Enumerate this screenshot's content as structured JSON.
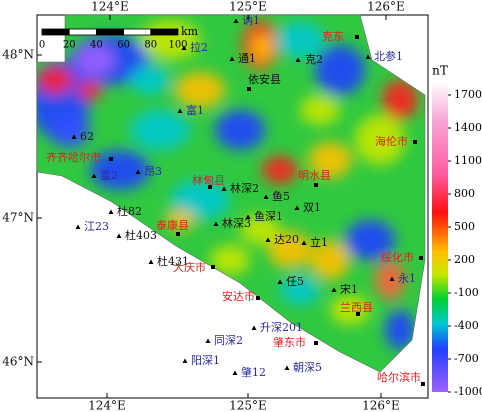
{
  "map": {
    "lon_labels": [
      "124°E",
      "125°E",
      "126°E"
    ],
    "lat_labels": [
      "48°N",
      "47°N",
      "46°N"
    ],
    "scale_bar": {
      "unit": "km",
      "labels": [
        "0",
        "20",
        "40",
        "60",
        "80",
        "100"
      ]
    },
    "colorbar": {
      "unit": "nT",
      "ticks": [
        1700,
        1400,
        1100,
        800,
        500,
        200,
        -100,
        -400,
        -700,
        -1000
      ]
    },
    "places": [
      {
        "label": "讷1",
        "kind": "well"
      },
      {
        "label": "克东",
        "kind": "city"
      },
      {
        "label": "北参1",
        "kind": "well"
      },
      {
        "label": "克2",
        "kind": "county"
      },
      {
        "label": "通1",
        "kind": "county"
      },
      {
        "label": "依安县",
        "kind": "county"
      },
      {
        "label": "拉2",
        "kind": "well"
      },
      {
        "label": "富1",
        "kind": "well"
      },
      {
        "label": "62",
        "kind": "county"
      },
      {
        "label": "齐齐哈尔市",
        "kind": "city"
      },
      {
        "label": "海伦市",
        "kind": "city"
      },
      {
        "label": "富2",
        "kind": "well"
      },
      {
        "label": "昂3",
        "kind": "well"
      },
      {
        "label": "林甸县",
        "kind": "city"
      },
      {
        "label": "林深2",
        "kind": "county"
      },
      {
        "label": "鱼5",
        "kind": "county"
      },
      {
        "label": "明水县",
        "kind": "city"
      },
      {
        "label": "双1",
        "kind": "county"
      },
      {
        "label": "杜82",
        "kind": "county"
      },
      {
        "label": "鱼深1",
        "kind": "county"
      },
      {
        "label": "林深3",
        "kind": "county"
      },
      {
        "label": "泰康县",
        "kind": "city"
      },
      {
        "label": "江23",
        "kind": "well"
      },
      {
        "label": "杜403",
        "kind": "county"
      },
      {
        "label": "达20",
        "kind": "county"
      },
      {
        "label": "立1",
        "kind": "county"
      },
      {
        "label": "杜431",
        "kind": "county"
      },
      {
        "label": "大庆市",
        "kind": "city"
      },
      {
        "label": "绥化市",
        "kind": "city"
      },
      {
        "label": "永1",
        "kind": "well"
      },
      {
        "label": "任5",
        "kind": "county"
      },
      {
        "label": "宋1",
        "kind": "county"
      },
      {
        "label": "安达市",
        "kind": "city"
      },
      {
        "label": "兰西县",
        "kind": "city"
      },
      {
        "label": "升深201",
        "kind": "well"
      },
      {
        "label": "同深2",
        "kind": "well"
      },
      {
        "label": "肇东市",
        "kind": "city"
      },
      {
        "label": "阳深1",
        "kind": "well"
      },
      {
        "label": "肇12",
        "kind": "well"
      },
      {
        "label": "朝深5",
        "kind": "well"
      },
      {
        "label": "哈尔滨市",
        "kind": "city"
      }
    ]
  }
}
